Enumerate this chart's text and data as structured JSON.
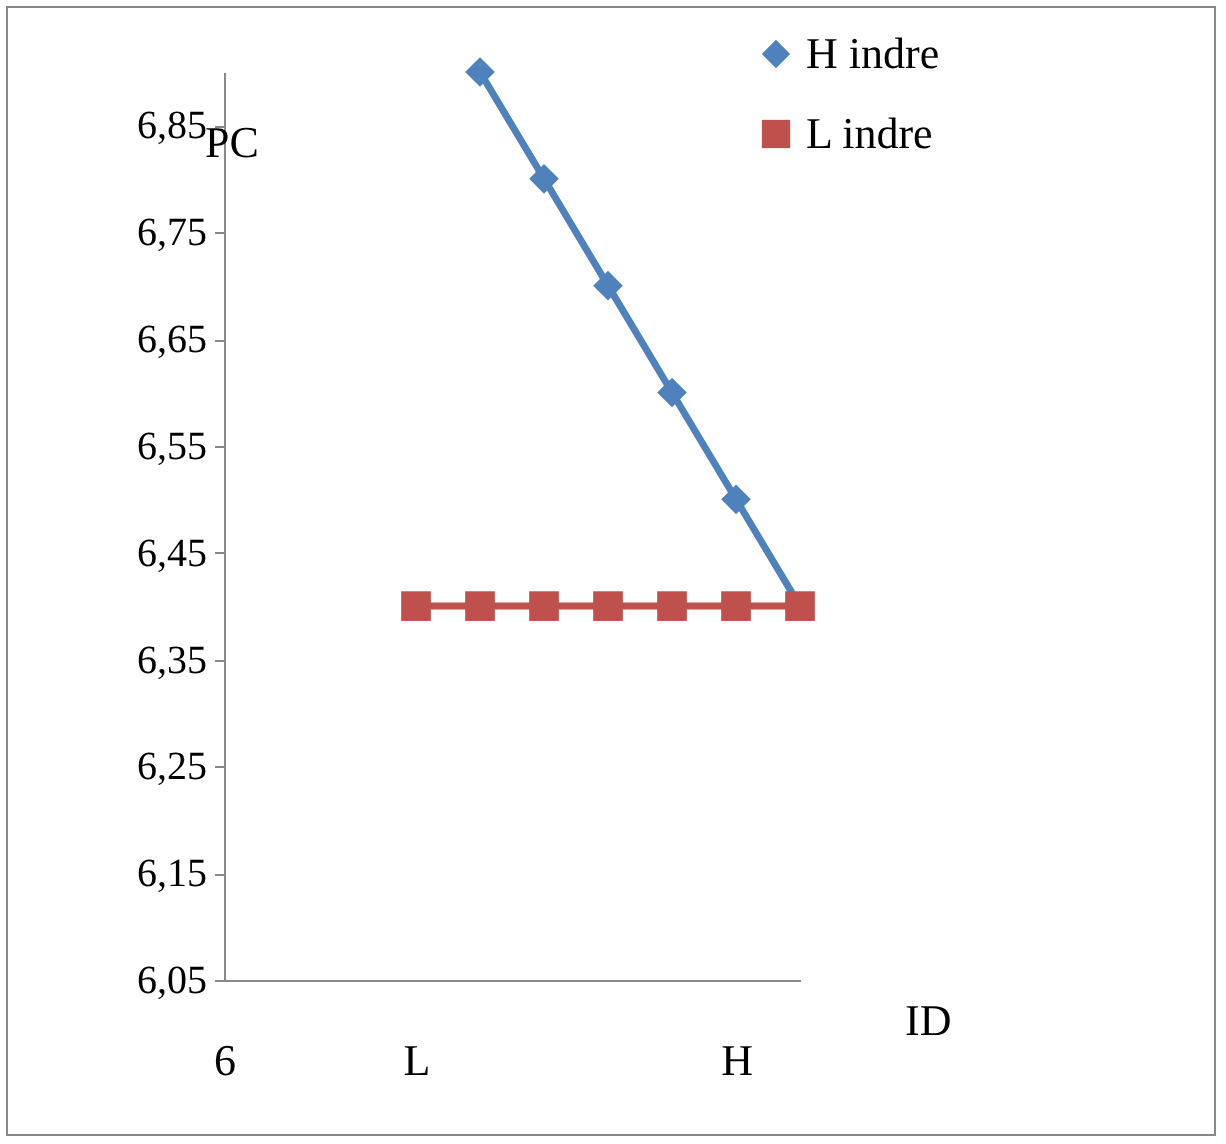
{
  "chart_data": {
    "type": "line",
    "xlabel": "ID",
    "ylabel": "PC",
    "categories": [
      "6",
      null,
      null,
      "L",
      null,
      null,
      null,
      null,
      "H",
      null
    ],
    "ylim": [
      6.05,
      6.9
    ],
    "yticks": [
      {
        "value": 6.05,
        "label": "6,05"
      },
      {
        "value": 6.15,
        "label": "6,15"
      },
      {
        "value": 6.25,
        "label": "6,25"
      },
      {
        "value": 6.35,
        "label": "6,35"
      },
      {
        "value": 6.45,
        "label": "6,45"
      },
      {
        "value": 6.55,
        "label": "6,55"
      },
      {
        "value": 6.65,
        "label": "6,65"
      },
      {
        "value": 6.75,
        "label": "6,75"
      },
      {
        "value": 6.85,
        "label": "6,85"
      }
    ],
    "grid": false,
    "legend": "top right",
    "line_style": "solid",
    "series": [
      {
        "name": "H indre",
        "color": "#4f81bd",
        "marker": "diamond",
        "values": [
          null,
          null,
          null,
          null,
          6.9,
          6.8,
          6.7,
          6.6,
          6.5,
          6.4
        ]
      },
      {
        "name": "L indre",
        "color": "#c0504d",
        "marker": "square",
        "values": [
          null,
          null,
          null,
          6.4,
          6.4,
          6.4,
          6.4,
          6.4,
          6.4,
          6.4
        ]
      }
    ]
  }
}
